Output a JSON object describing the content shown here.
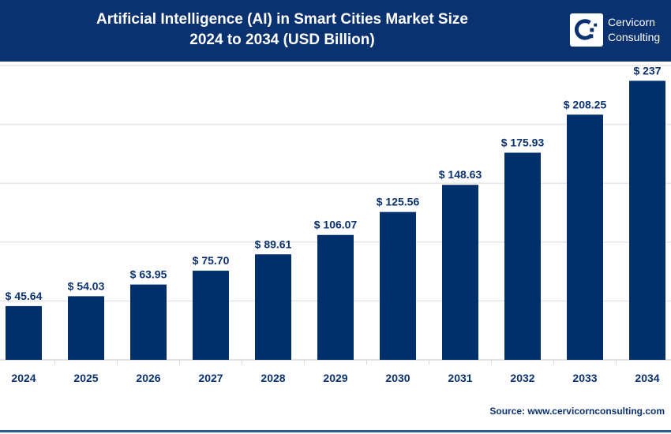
{
  "header": {
    "title_line1": "Artificial Intelligence (AI) in Smart Cities Market Size",
    "title_line2": "2024 to 2034 (USD Billion)",
    "brand_line1": "Cervicorn",
    "brand_line2": "Consulting"
  },
  "source": "Source: www.cervicornconsulting.com",
  "colors": {
    "bar": "#00306b",
    "header": "#0b3270",
    "grid": "#e6e6e6"
  },
  "chart_data": {
    "type": "bar",
    "title": "Artificial Intelligence (AI) in Smart Cities Market Size 2024 to 2034 (USD Billion)",
    "categories": [
      "2024",
      "2025",
      "2026",
      "2027",
      "2028",
      "2029",
      "2030",
      "2031",
      "2032",
      "2033",
      "2034"
    ],
    "values": [
      45.64,
      54.03,
      63.95,
      75.7,
      89.61,
      106.07,
      125.56,
      148.63,
      175.93,
      208.25,
      237
    ],
    "labels": [
      "$ 45.64",
      "$ 54.03",
      "$ 63.95",
      "$ 75.70",
      "$ 89.61",
      "$ 106.07",
      "$ 125.56",
      "$ 148.63",
      "$ 175.93",
      "$ 208.25",
      "$ 237"
    ],
    "ylim": [
      0,
      250
    ],
    "grid": true,
    "legend": "none"
  }
}
